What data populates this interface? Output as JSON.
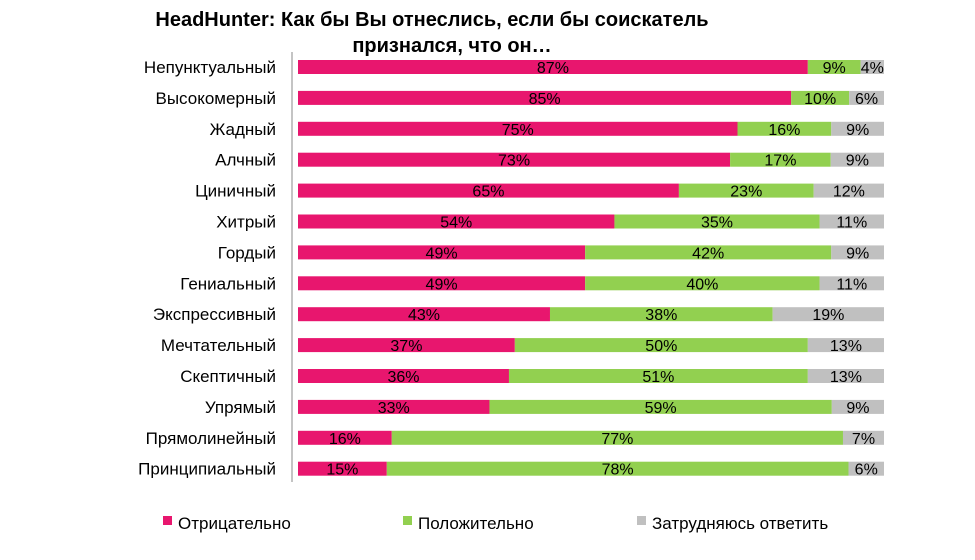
{
  "chart_data": {
    "type": "bar",
    "orientation": "horizontal",
    "stacked": "percent",
    "title_lines": [
      "HeadHunter: Как бы Вы отнеслись, если бы соискатель",
      "признался, что он…"
    ],
    "categories": [
      "Непунктуальный",
      "Высокомерный",
      "Жадный",
      "Алчный",
      "Циничный",
      "Хитрый",
      "Гордый",
      "Гениальный",
      "Экспрессивный",
      "Мечтательный",
      "Скептичный",
      "Упрямый",
      "Прямолинейный",
      "Принципиальный"
    ],
    "series": [
      {
        "name": "Отрицательно",
        "color": "#E8166E",
        "values": [
          87,
          85,
          75,
          73,
          65,
          54,
          49,
          49,
          43,
          37,
          36,
          33,
          16,
          15
        ]
      },
      {
        "name": "Положительно",
        "color": "#92D050",
        "values": [
          9,
          10,
          16,
          17,
          23,
          35,
          42,
          40,
          38,
          50,
          51,
          59,
          77,
          78
        ]
      },
      {
        "name": "Затрудняюсь ответить",
        "color": "#C0C0C0",
        "values": [
          4,
          6,
          9,
          9,
          12,
          11,
          9,
          11,
          19,
          13,
          13,
          9,
          7,
          6
        ]
      }
    ],
    "value_suffix": "%",
    "xlim": [
      0,
      100
    ],
    "grid": false,
    "legend_position": "bottom"
  }
}
